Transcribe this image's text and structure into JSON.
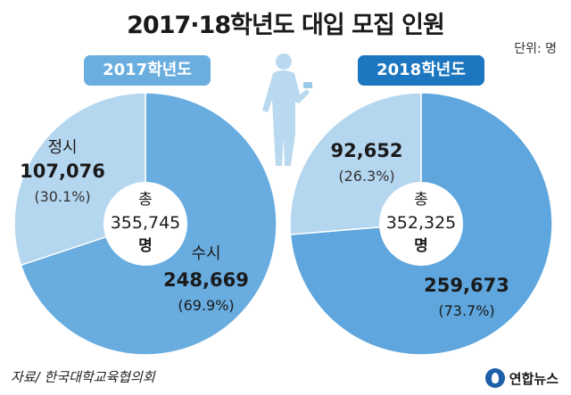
{
  "title": "2017·18학년도 대입 모집 인원",
  "unit": "단위: 명",
  "source": "자료/ 한국대학교육협의회",
  "logo": "연합뉴스",
  "chart_data": [
    {
      "type": "pie",
      "year_label": "2017학년도",
      "total_label": "총",
      "total": "355,745",
      "total_unit": "명",
      "slices": [
        {
          "name": "정시",
          "value": 107076,
          "value_label": "107,076",
          "pct_label": "(30.1%)",
          "color": "#b5d6ef"
        },
        {
          "name": "수시",
          "value": 248669,
          "value_label": "248,669",
          "pct_label": "(69.9%)",
          "color": "#68ace0"
        }
      ]
    },
    {
      "type": "pie",
      "year_label": "2018학년도",
      "total_label": "총",
      "total": "352,325",
      "total_unit": "명",
      "slices": [
        {
          "name": "",
          "value": 92652,
          "value_label": "92,652",
          "pct_label": "(26.3%)",
          "color": "#b5d6ef"
        },
        {
          "name": "",
          "value": 259673,
          "value_label": "259,673",
          "pct_label": "(73.7%)",
          "color": "#5ea6dd"
        }
      ]
    }
  ]
}
